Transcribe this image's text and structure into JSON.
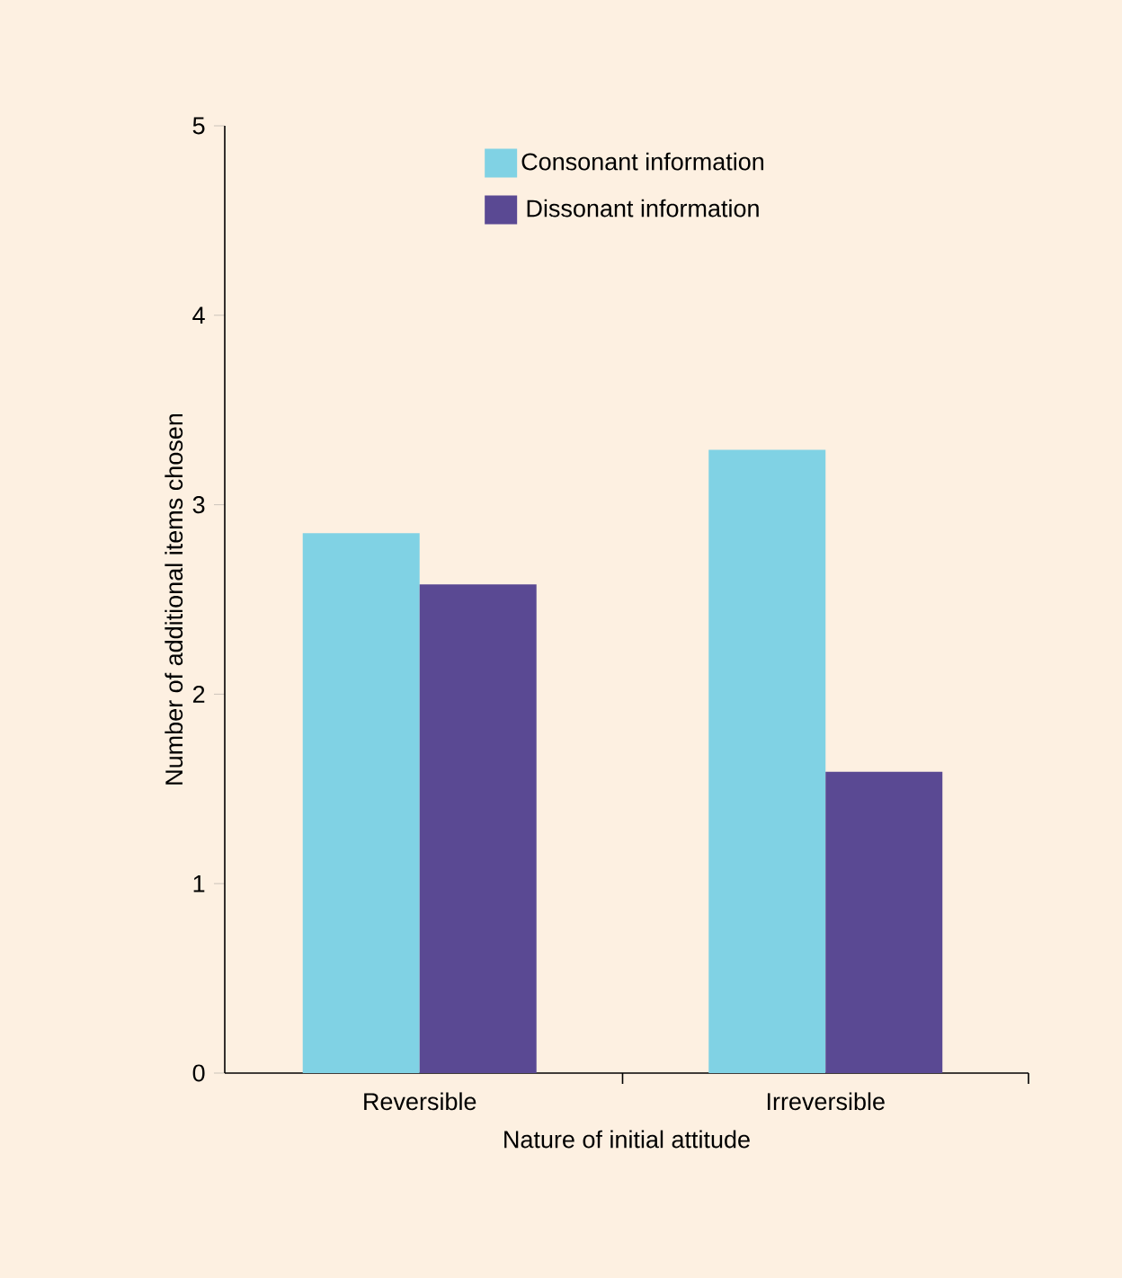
{
  "chart_data": {
    "type": "bar",
    "xlabel": "Nature of initial attitude",
    "ylabel": "Number of additional items chosen",
    "categories": [
      "Reversible",
      "Irreversible"
    ],
    "series": [
      {
        "name": "Consonant information",
        "color": "#80d2e4",
        "values": [
          2.85,
          3.29
        ]
      },
      {
        "name": "Dissonant information",
        "color": "#5a4993",
        "values": [
          2.58,
          1.59
        ]
      }
    ],
    "ylim": [
      0,
      5
    ],
    "yticks": [
      0,
      1,
      2,
      3,
      4,
      5
    ],
    "legend": "top",
    "grid": false
  }
}
